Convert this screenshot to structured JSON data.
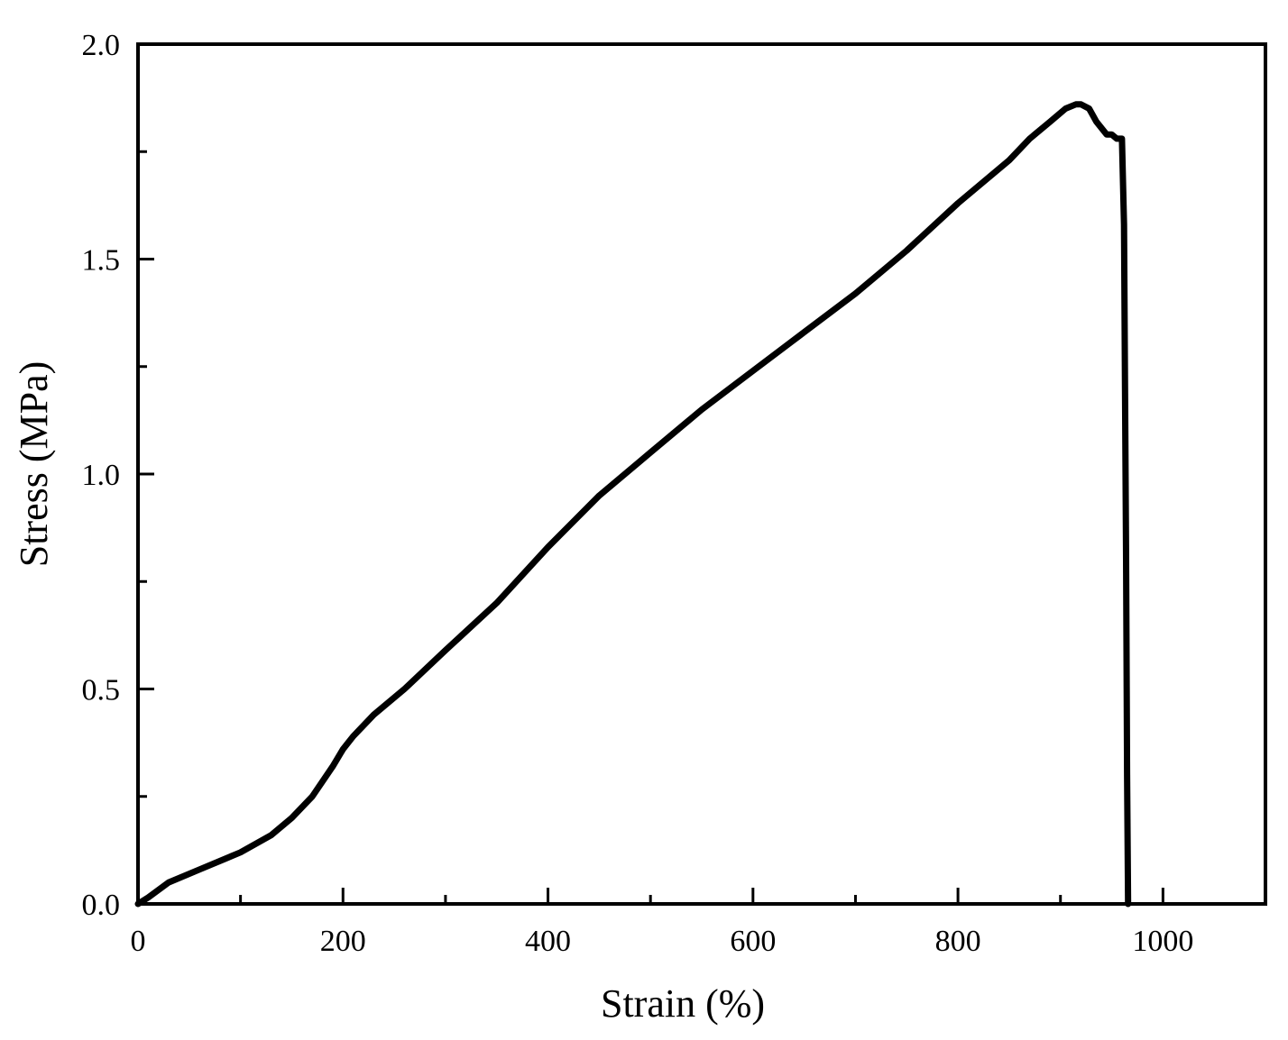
{
  "chart_data": {
    "type": "line",
    "title": "",
    "xlabel": "Strain (%)",
    "ylabel": "Stress (MPa)",
    "xlim": [
      0,
      1100
    ],
    "ylim": [
      0,
      2.0
    ],
    "x_ticks": [
      0,
      200,
      400,
      600,
      800,
      1000
    ],
    "x_tick_labels": [
      "0",
      "200",
      "400",
      "600",
      "800",
      "1000"
    ],
    "x_minor_ticks": [
      100,
      300,
      500,
      700,
      900
    ],
    "y_ticks": [
      0,
      0.5,
      1.0,
      1.5,
      2.0
    ],
    "y_tick_labels": [
      "0.0",
      "0.5",
      "1.0",
      "1.5",
      "2.0"
    ],
    "y_minor_ticks": [
      0.25,
      0.75,
      1.25,
      1.75
    ],
    "grid": false,
    "legend": "none",
    "series": [
      {
        "line_color": "#000000",
        "x": [
          0,
          10,
          30,
          60,
          100,
          130,
          150,
          170,
          190,
          200,
          210,
          230,
          260,
          300,
          350,
          400,
          450,
          500,
          550,
          600,
          650,
          700,
          750,
          800,
          850,
          870,
          890,
          905,
          915,
          920,
          928,
          935,
          945,
          950,
          955,
          960,
          962,
          963,
          964,
          965,
          966
        ],
        "y": [
          0,
          0.015,
          0.05,
          0.08,
          0.12,
          0.16,
          0.2,
          0.25,
          0.32,
          0.36,
          0.39,
          0.44,
          0.5,
          0.59,
          0.7,
          0.83,
          0.95,
          1.05,
          1.15,
          1.24,
          1.33,
          1.42,
          1.52,
          1.63,
          1.73,
          1.78,
          1.82,
          1.85,
          1.86,
          1.86,
          1.85,
          1.82,
          1.79,
          1.79,
          1.78,
          1.78,
          1.58,
          1.2,
          0.8,
          0.3,
          0.0
        ]
      }
    ]
  }
}
